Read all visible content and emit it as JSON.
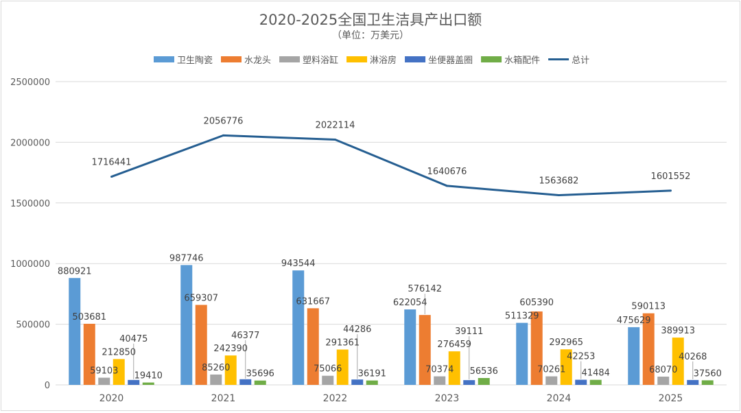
{
  "chart_data": {
    "type": "bar+line",
    "title": "2020-2025全国卫生洁具产出口额",
    "subtitle": "（单位：万美元）",
    "categories": [
      "2020",
      "2021",
      "2022",
      "2023",
      "2024",
      "2025"
    ],
    "ylim": [
      0,
      2500000
    ],
    "yticks": [
      "0",
      "500000",
      "1000000",
      "1500000",
      "2000000",
      "2500000"
    ],
    "grid": true,
    "legend_placement": "top",
    "series": [
      {
        "name": "卫生陶瓷",
        "kind": "bar",
        "color": "#5B9BD5",
        "values": [
          880921,
          987746,
          943544,
          622054,
          511329,
          475629
        ]
      },
      {
        "name": "水龙头",
        "kind": "bar",
        "color": "#ED7D31",
        "values": [
          503681,
          659307,
          631667,
          576142,
          605390,
          590113
        ]
      },
      {
        "name": "塑料浴缸",
        "kind": "bar",
        "color": "#A5A5A5",
        "values": [
          59103,
          85260,
          75066,
          70374,
          70261,
          68070
        ]
      },
      {
        "name": "淋浴房",
        "kind": "bar",
        "color": "#FFC000",
        "values": [
          212850,
          242390,
          291361,
          276459,
          292965,
          389913
        ]
      },
      {
        "name": "坐便器盖圈",
        "kind": "bar",
        "color": "#4472C4",
        "values": [
          40475,
          46377,
          44286,
          39111,
          42253,
          40268
        ]
      },
      {
        "name": "水箱配件",
        "kind": "bar",
        "color": "#70AD47",
        "values": [
          19410,
          35696,
          36191,
          56536,
          41484,
          37560
        ]
      },
      {
        "name": "总计",
        "kind": "line",
        "color": "#255E91",
        "values": [
          1716441,
          2056776,
          2022114,
          1640676,
          1563682,
          1601552
        ]
      }
    ]
  }
}
